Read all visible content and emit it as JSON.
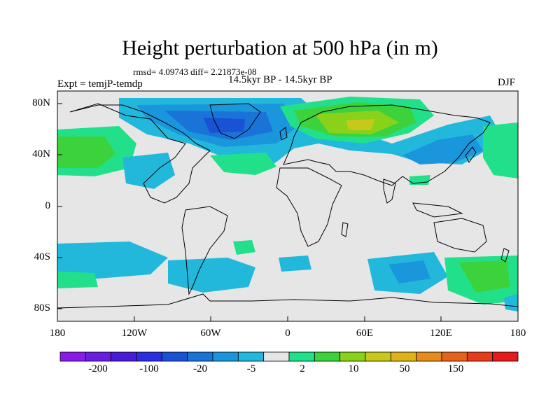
{
  "title": "Height perturbation at 500 hPa (in m)",
  "stats": "rmsd= 4.09743 diff= 2.21873e-08",
  "period": "14.5kyr BP - 14.5kyr BP",
  "experiment": "Expt = temjP-temdp",
  "season": "DJF",
  "map_data": {
    "projection": "cylindrical equidistant",
    "lon_range": [
      -180,
      180
    ],
    "lat_range": [
      -90,
      90
    ],
    "x_ticks": [
      "180",
      "120W",
      "60W",
      "0",
      "60E",
      "120E",
      "180"
    ],
    "y_ticks": [
      "80N",
      "40N",
      "0",
      "40S",
      "80S"
    ],
    "background_color": "#e6e6e6",
    "coastline_color": "#000000"
  },
  "colorbar": {
    "colors": [
      "#8a1be6",
      "#6a1fe0",
      "#4a1ad8",
      "#2a2ee0",
      "#1a52d6",
      "#1a74d8",
      "#1a96dc",
      "#22b8dc",
      "#e6e6e6",
      "#22e08a",
      "#3cd23c",
      "#8ad21a",
      "#c8c81a",
      "#e0b21a",
      "#e68a1a",
      "#e6641a",
      "#e63c1a",
      "#e61a1a"
    ],
    "labels": [
      "-200",
      "-100",
      "-20",
      "-5",
      "2",
      "10",
      "50",
      "150"
    ]
  }
}
